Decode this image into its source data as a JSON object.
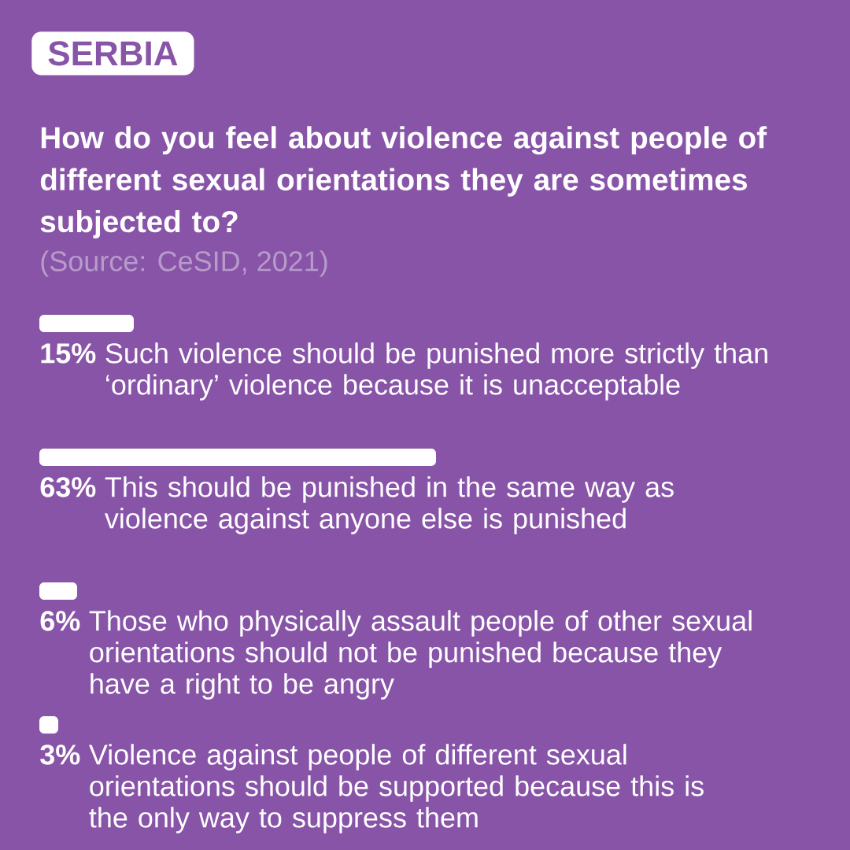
{
  "chart_data": {
    "type": "bar",
    "orientation": "horizontal",
    "title": "SERBIA",
    "subtitle": "How do you feel about violence against people of different sexual orientations they are sometimes subjected to?",
    "annotations": [
      "(Source: CeSID, 2021)"
    ],
    "categories": [
      "Such violence should be punished more strictly than ‘ordinary’ violence because it is unacceptable",
      "This should be punished in the same way as violence against anyone else is punished",
      "Those who physically assault people of other sexual orientations should not be punished because they have a right to be angry",
      "Violence against people of different sexual orientations should be supported because this is the only way to suppress them"
    ],
    "values": [
      15,
      63,
      6,
      3
    ],
    "value_labels": [
      "15%",
      "63%",
      "6%",
      "3%"
    ],
    "color": "#ffffff"
  }
}
